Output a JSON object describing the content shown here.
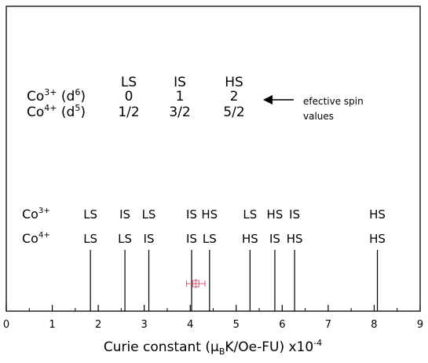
{
  "chart_data": {
    "type": "scatter",
    "title": "",
    "xlabel_prefix": "Curie constant (",
    "xlabel_mu": "μ",
    "xlabel_B": "B",
    "xlabel_mid": "K/Oe-FU) x10",
    "xlabel_exp": "-4",
    "ylabel": "",
    "xlim": [
      0,
      9
    ],
    "x_ticks": [
      "0",
      "1",
      "2",
      "3",
      "4",
      "5",
      "6",
      "7",
      "8",
      "9"
    ],
    "spin_table": {
      "headers": [
        "LS",
        "IS",
        "HS"
      ],
      "rows": [
        {
          "ion": "Co",
          "charge": "3+",
          "config_open": " (d",
          "config_exp": "6",
          "config_close": ")",
          "values": [
            "0",
            "1",
            "2"
          ]
        },
        {
          "ion": "Co",
          "charge": "4+",
          "config_open": " (d",
          "config_exp": "5",
          "config_close": ")",
          "values": [
            "1/2",
            "3/2",
            "5/2"
          ]
        }
      ],
      "annotation_line1": "efective spin",
      "annotation_line2": "values"
    },
    "row_labels": [
      {
        "ion": "Co",
        "charge": "3+"
      },
      {
        "ion": "Co",
        "charge": "4+"
      }
    ],
    "reference_lines": [
      {
        "x": 1.83,
        "co3": "LS",
        "co4": "LS"
      },
      {
        "x": 2.58,
        "co3": "IS",
        "co4": "LS"
      },
      {
        "x": 3.1,
        "co3": "LS",
        "co4": "IS"
      },
      {
        "x": 4.03,
        "co3": "IS",
        "co4": "IS"
      },
      {
        "x": 4.42,
        "co3": "HS",
        "co4": "LS"
      },
      {
        "x": 5.3,
        "co3": "LS",
        "co4": "HS"
      },
      {
        "x": 5.84,
        "co3": "HS",
        "co4": "IS"
      },
      {
        "x": 6.27,
        "co3": "IS",
        "co4": "HS"
      },
      {
        "x": 8.07,
        "co3": "HS",
        "co4": "HS"
      }
    ],
    "measured_point": {
      "x": 4.12,
      "xerr": 0.2,
      "color": "#e0506e"
    }
  }
}
